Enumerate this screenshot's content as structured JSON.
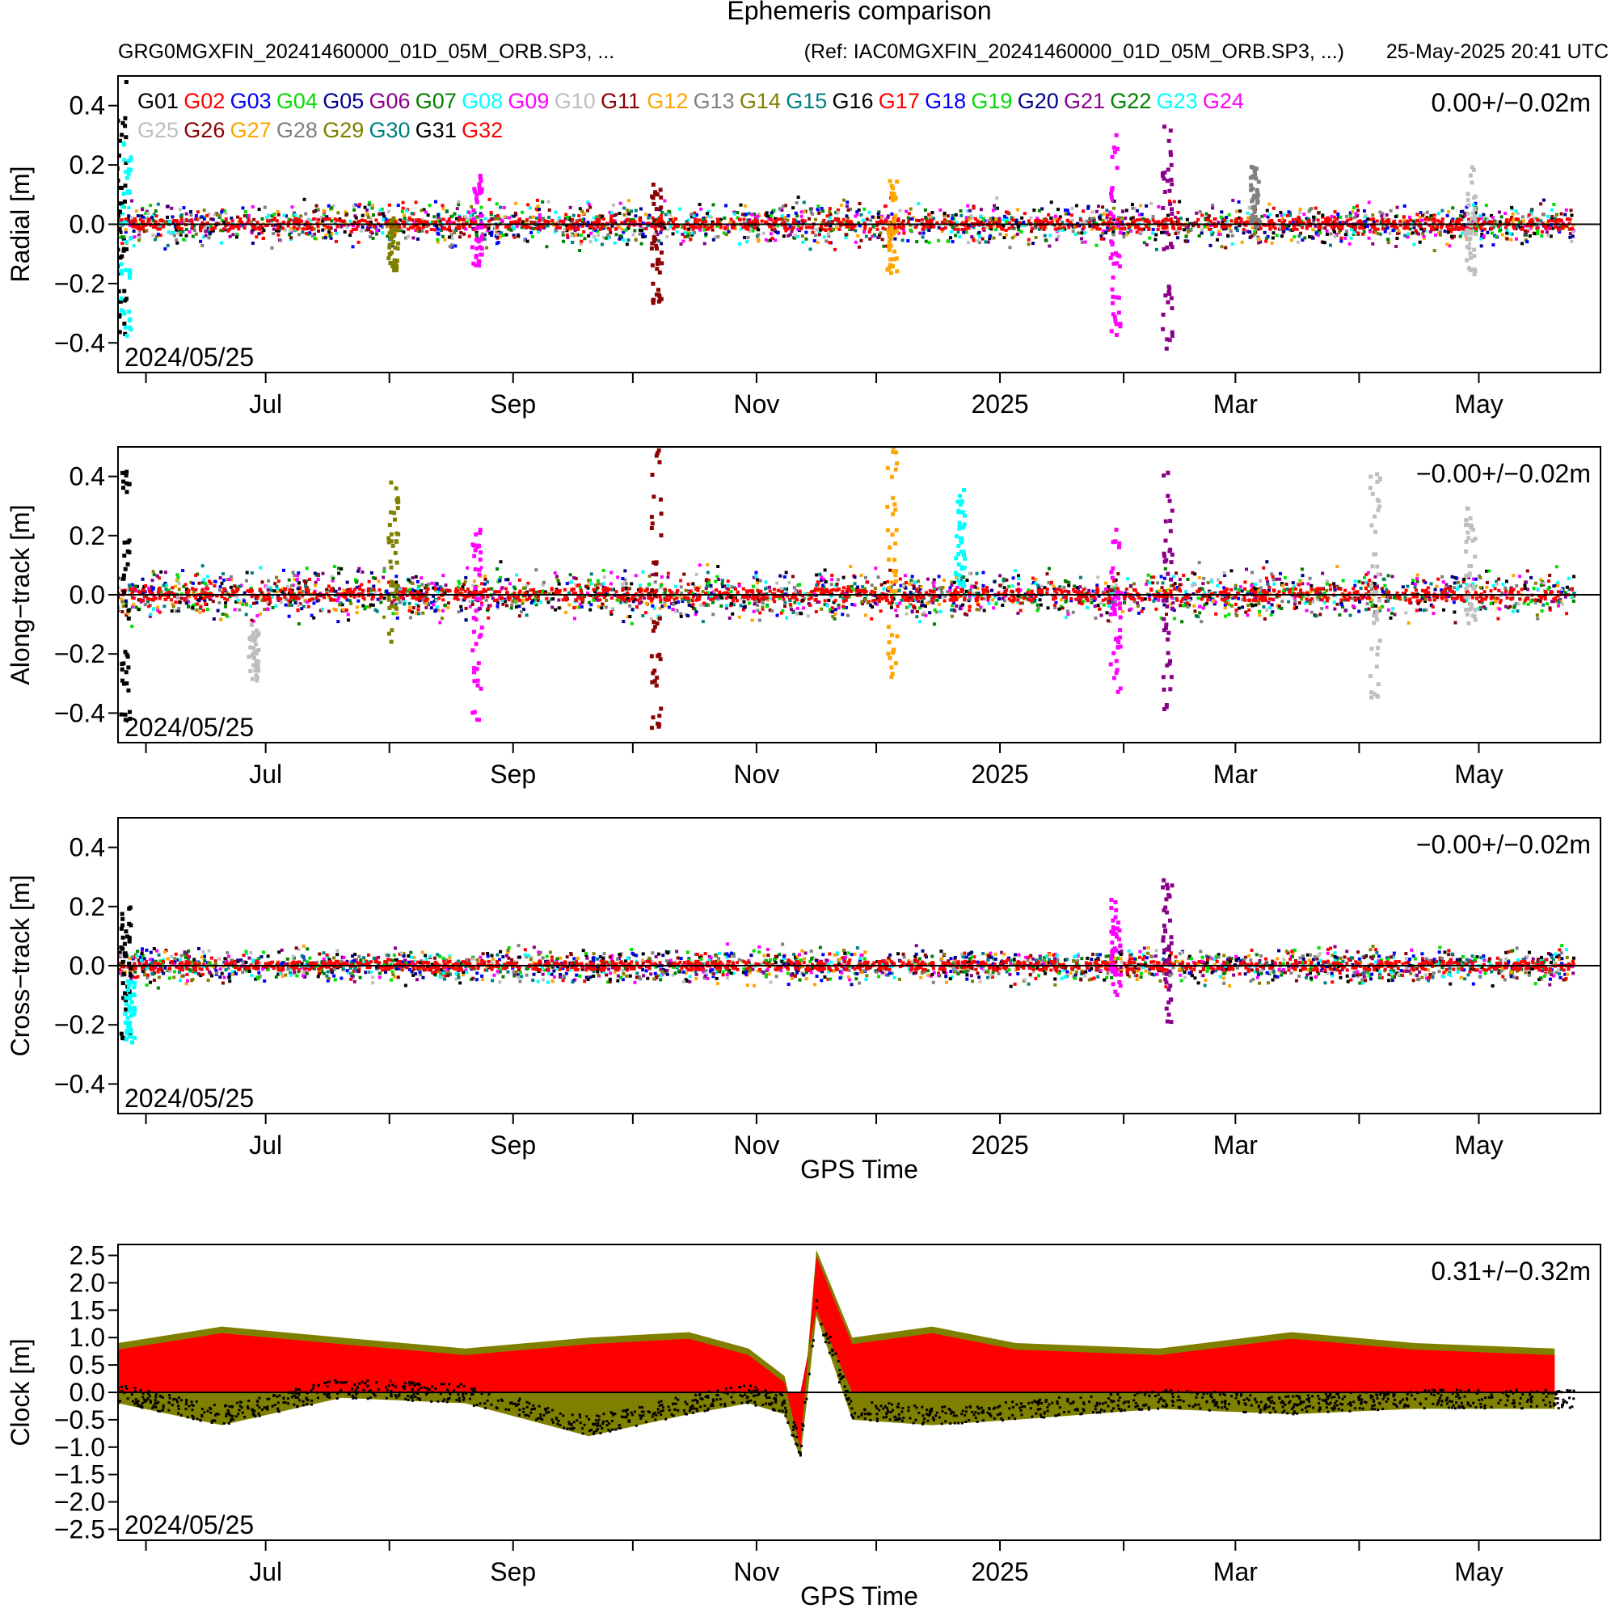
{
  "header": {
    "title": "Ephemeris comparison",
    "file_label": "GRG0MGXFIN_20241460000_01D_05M_ORB.SP3, ...",
    "ref_label": "(Ref: IAC0MGXFIN_20241460000_01D_05M_ORB.SP3, ...)",
    "timestamp": "25-May-2025 20:41 UTC"
  },
  "chart_data": [
    {
      "type": "scatter",
      "id": "radial",
      "ylabel": "Radial [m]",
      "xlabel": "",
      "ylim": [
        -0.5,
        0.5
      ],
      "yticks": [
        -0.4,
        -0.2,
        0.0,
        0.2,
        0.4
      ],
      "ytick_labels": [
        "−0.4",
        "−0.2",
        "0.0",
        "0.2",
        "0.4"
      ],
      "x_start": "2024-05-25",
      "x_end": "2025-05-25",
      "xtick_labels": [
        "Jul",
        "Sep",
        "Nov",
        "2025",
        "Mar",
        "May"
      ],
      "stat": "0.00+/−0.02m",
      "start_label": "2024/05/25",
      "noise_amplitude": 0.03,
      "outliers": [
        {
          "sat": "G16",
          "x": "2024-05-26",
          "ymin": -0.46,
          "ymax": 0.48
        },
        {
          "sat": "G23",
          "x": "2024-05-27",
          "ymin": -0.4,
          "ymax": 0.28
        },
        {
          "sat": "G09",
          "x": "2024-08-23",
          "ymin": -0.14,
          "ymax": 0.17
        },
        {
          "sat": "G14",
          "x": "2024-08-02",
          "ymin": -0.16,
          "ymax": 0.02
        },
        {
          "sat": "G11",
          "x": "2024-10-07",
          "ymin": -0.27,
          "ymax": 0.16
        },
        {
          "sat": "G12",
          "x": "2024-12-05",
          "ymin": -0.17,
          "ymax": 0.15
        },
        {
          "sat": "G09",
          "x": "2025-01-30",
          "ymin": -0.4,
          "ymax": 0.36
        },
        {
          "sat": "G21",
          "x": "2025-02-12",
          "ymin": -0.44,
          "ymax": 0.34
        },
        {
          "sat": "G10",
          "x": "2025-04-29",
          "ymin": -0.2,
          "ymax": 0.2
        },
        {
          "sat": "G13",
          "x": "2025-03-06",
          "ymin": -0.02,
          "ymax": 0.2
        }
      ]
    },
    {
      "type": "scatter",
      "id": "along",
      "ylabel": "Along−track [m]",
      "xlabel": "",
      "ylim": [
        -0.5,
        0.5
      ],
      "yticks": [
        -0.4,
        -0.2,
        0.0,
        0.2,
        0.4
      ],
      "ytick_labels": [
        "−0.4",
        "−0.2",
        "0.0",
        "0.2",
        "0.4"
      ],
      "x_start": "2024-05-25",
      "x_end": "2025-05-25",
      "xtick_labels": [
        "Jul",
        "Sep",
        "Nov",
        "2025",
        "Mar",
        "May"
      ],
      "stat": "−0.00+/−0.02m",
      "start_label": "2024/05/25",
      "noise_amplitude": 0.035,
      "outliers": [
        {
          "sat": "G16",
          "x": "2024-05-27",
          "ymin": -0.44,
          "ymax": 0.42
        },
        {
          "sat": "G10",
          "x": "2024-06-28",
          "ymin": -0.29,
          "ymax": -0.1
        },
        {
          "sat": "G14",
          "x": "2024-08-02",
          "ymin": -0.16,
          "ymax": 0.39
        },
        {
          "sat": "G09",
          "x": "2024-08-23",
          "ymin": -0.46,
          "ymax": 0.22
        },
        {
          "sat": "G11",
          "x": "2024-10-07",
          "ymin": -0.48,
          "ymax": 0.5
        },
        {
          "sat": "G12",
          "x": "2024-12-05",
          "ymin": -0.28,
          "ymax": 0.5
        },
        {
          "sat": "G23",
          "x": "2024-12-22",
          "ymin": 0.02,
          "ymax": 0.36
        },
        {
          "sat": "G09",
          "x": "2025-01-30",
          "ymin": -0.33,
          "ymax": 0.23
        },
        {
          "sat": "G21",
          "x": "2025-02-12",
          "ymin": -0.43,
          "ymax": 0.42
        },
        {
          "sat": "G10",
          "x": "2025-04-05",
          "ymin": -0.36,
          "ymax": 0.41
        },
        {
          "sat": "G10",
          "x": "2025-04-29",
          "ymin": -0.1,
          "ymax": 0.3
        }
      ]
    },
    {
      "type": "scatter",
      "id": "cross",
      "ylabel": "Cross−track [m]",
      "xlabel": "GPS Time",
      "ylim": [
        -0.5,
        0.5
      ],
      "yticks": [
        -0.4,
        -0.2,
        0.0,
        0.2,
        0.4
      ],
      "ytick_labels": [
        "−0.4",
        "−0.2",
        "0.0",
        "0.2",
        "0.4"
      ],
      "x_start": "2024-05-25",
      "x_end": "2025-05-25",
      "xtick_labels": [
        "Jul",
        "Sep",
        "Nov",
        "2025",
        "Mar",
        "May"
      ],
      "stat": "−0.00+/−0.02m",
      "start_label": "2024/05/25",
      "noise_amplitude": 0.025,
      "outliers": [
        {
          "sat": "G16",
          "x": "2024-05-27",
          "ymin": -0.26,
          "ymax": 0.24
        },
        {
          "sat": "G23",
          "x": "2024-05-28",
          "ymin": -0.27,
          "ymax": -0.05
        },
        {
          "sat": "G09",
          "x": "2025-01-30",
          "ymin": -0.1,
          "ymax": 0.23
        },
        {
          "sat": "G21",
          "x": "2025-02-12",
          "ymin": -0.2,
          "ymax": 0.29
        }
      ]
    },
    {
      "type": "scatter",
      "id": "clock",
      "ylabel": "Clock [m]",
      "xlabel": "GPS Time",
      "ylim": [
        -2.7,
        2.7
      ],
      "yticks": [
        -2.5,
        -2.0,
        -1.5,
        -1.0,
        -0.5,
        0.0,
        0.5,
        1.0,
        1.5,
        2.0,
        2.5
      ],
      "ytick_labels": [
        "−2.5",
        "−2.0",
        "−1.5",
        "−1.0",
        "−0.5",
        "0.0",
        "0.5",
        "1.0",
        "1.5",
        "2.0",
        "2.5"
      ],
      "x_start": "2024-05-25",
      "x_end": "2025-05-25",
      "xtick_labels": [
        "Jul",
        "Sep",
        "Nov",
        "2025",
        "Mar",
        "May"
      ],
      "stat": "0.31+/−0.32m",
      "start_label": "2024/05/25",
      "band_upper": [
        [
          "2024-05-25",
          0.9
        ],
        [
          "2024-06-20",
          1.2
        ],
        [
          "2024-07-20",
          1.0
        ],
        [
          "2024-08-20",
          0.8
        ],
        [
          "2024-09-20",
          1.0
        ],
        [
          "2024-10-15",
          1.1
        ],
        [
          "2024-10-30",
          0.8
        ],
        [
          "2024-11-08",
          0.3
        ],
        [
          "2024-11-12",
          -0.9
        ],
        [
          "2024-11-16",
          2.6
        ],
        [
          "2024-11-25",
          1.0
        ],
        [
          "2024-12-15",
          1.2
        ],
        [
          "2025-01-05",
          0.9
        ],
        [
          "2025-02-10",
          0.8
        ],
        [
          "2025-03-15",
          1.1
        ],
        [
          "2025-04-15",
          0.9
        ],
        [
          "2025-05-20",
          0.8
        ]
      ],
      "band_lower": [
        [
          "2024-05-25",
          -0.2
        ],
        [
          "2024-06-20",
          -0.6
        ],
        [
          "2024-07-20",
          -0.1
        ],
        [
          "2024-08-20",
          -0.2
        ],
        [
          "2024-09-20",
          -0.8
        ],
        [
          "2024-10-15",
          -0.4
        ],
        [
          "2024-10-30",
          -0.2
        ],
        [
          "2024-11-08",
          -0.4
        ],
        [
          "2024-11-12",
          -1.2
        ],
        [
          "2024-11-16",
          1.4
        ],
        [
          "2024-11-25",
          -0.5
        ],
        [
          "2024-12-15",
          -0.6
        ],
        [
          "2025-01-05",
          -0.5
        ],
        [
          "2025-02-10",
          -0.3
        ],
        [
          "2025-03-15",
          -0.4
        ],
        [
          "2025-04-15",
          -0.3
        ],
        [
          "2025-05-20",
          -0.3
        ]
      ]
    }
  ],
  "legend": [
    {
      "name": "G01",
      "color": "#000000"
    },
    {
      "name": "G02",
      "color": "#ff0000"
    },
    {
      "name": "G03",
      "color": "#0000ff"
    },
    {
      "name": "G04",
      "color": "#00dd00"
    },
    {
      "name": "G05",
      "color": "#00008b"
    },
    {
      "name": "G06",
      "color": "#8b008b"
    },
    {
      "name": "G07",
      "color": "#008000"
    },
    {
      "name": "G08",
      "color": "#00ffff"
    },
    {
      "name": "G09",
      "color": "#ff00ff"
    },
    {
      "name": "G10",
      "color": "#bebebe"
    },
    {
      "name": "G11",
      "color": "#8b0000"
    },
    {
      "name": "G12",
      "color": "#ffa500"
    },
    {
      "name": "G13",
      "color": "#808080"
    },
    {
      "name": "G14",
      "color": "#808000"
    },
    {
      "name": "G15",
      "color": "#008080"
    },
    {
      "name": "G16",
      "color": "#000000"
    },
    {
      "name": "G17",
      "color": "#ff0000"
    },
    {
      "name": "G18",
      "color": "#0000ff"
    },
    {
      "name": "G19",
      "color": "#00dd00"
    },
    {
      "name": "G20",
      "color": "#00008b"
    },
    {
      "name": "G21",
      "color": "#8b008b"
    },
    {
      "name": "G22",
      "color": "#008000"
    },
    {
      "name": "G23",
      "color": "#00ffff"
    },
    {
      "name": "G24",
      "color": "#ff00ff"
    },
    {
      "name": "G25",
      "color": "#bebebe"
    },
    {
      "name": "G26",
      "color": "#8b0000"
    },
    {
      "name": "G27",
      "color": "#ffa500"
    },
    {
      "name": "G28",
      "color": "#808080"
    },
    {
      "name": "G29",
      "color": "#808000"
    },
    {
      "name": "G30",
      "color": "#008080"
    },
    {
      "name": "G31",
      "color": "#000000"
    },
    {
      "name": "G32",
      "color": "#ff0000"
    }
  ]
}
